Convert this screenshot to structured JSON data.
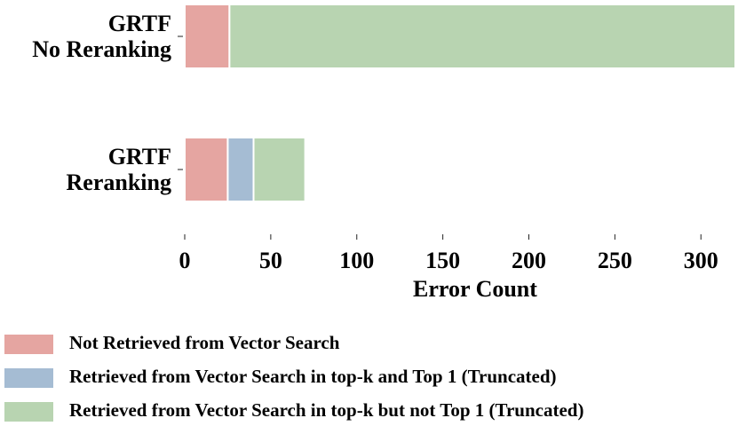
{
  "chart_data": {
    "type": "stacked-barh",
    "categories": [
      "GRTF\nNo Reranking",
      "GRTF\nReranking"
    ],
    "series": [
      {
        "name": "Not Retrieved from Vector Search",
        "color": "#e5a5a1",
        "values": [
          26,
          25
        ]
      },
      {
        "name": "Retrieved from Vector Search in top-k and Top 1 (Truncated)",
        "color": "#a5bcd3",
        "values": [
          0,
          15
        ]
      },
      {
        "name": "Retrieved from Vector Search in top-k but not Top 1 (Truncated)",
        "color": "#b8d4b1",
        "values": [
          294,
          30
        ]
      }
    ],
    "xlabel": "Error Count",
    "xlim": [
      0,
      320
    ],
    "xticks": [
      0,
      50,
      100,
      150,
      200,
      250,
      300
    ]
  }
}
